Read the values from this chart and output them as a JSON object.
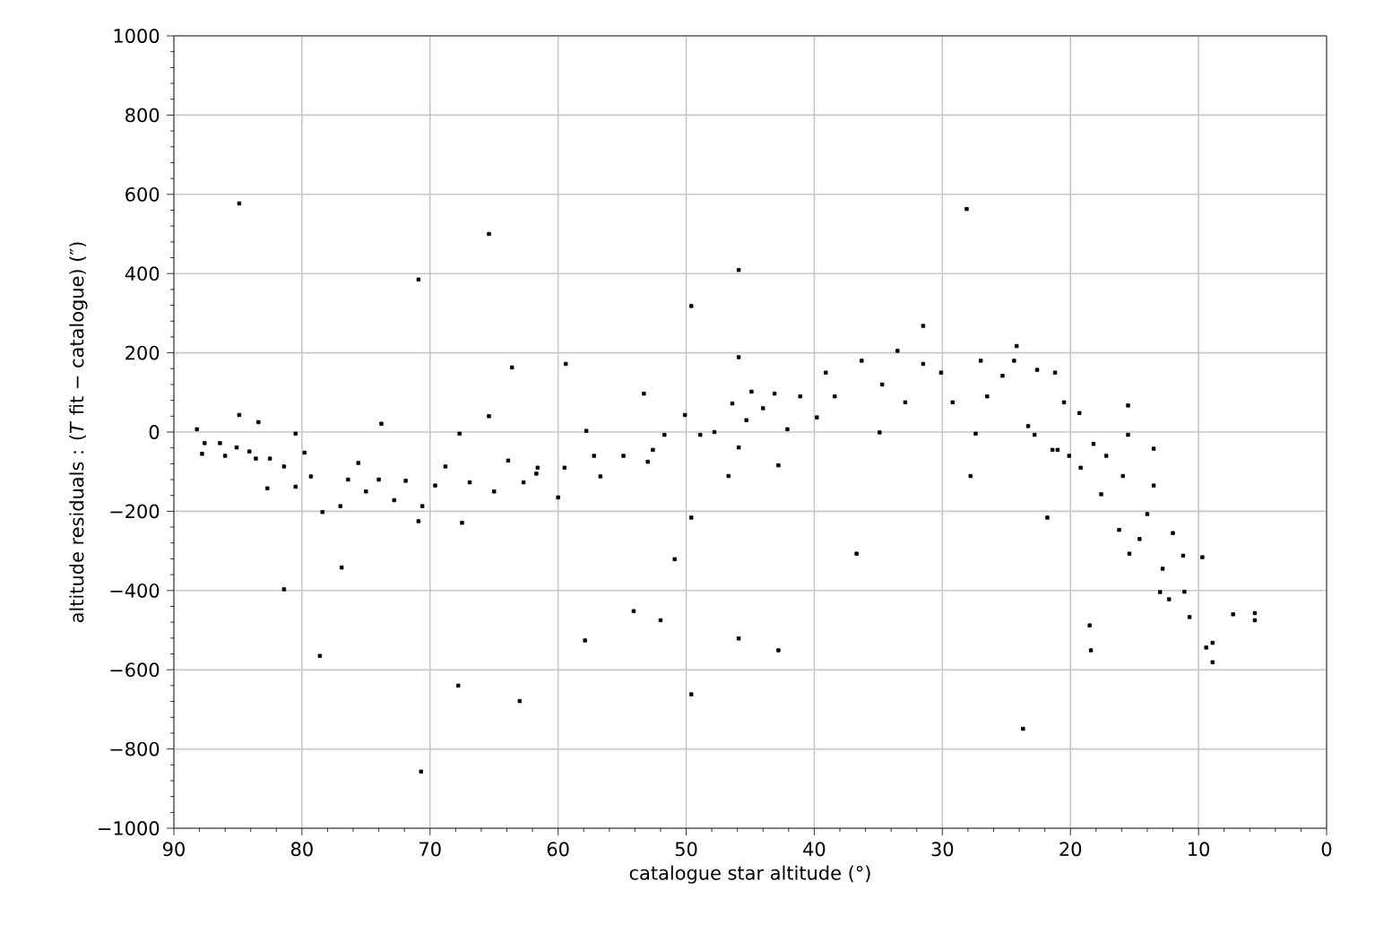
{
  "chart_data": {
    "type": "scatter",
    "xlabel": "catalogue star altitude (°)",
    "ylabel": "altitude residuals : (*T* fit − catalogue) (″)",
    "xlim": [
      90,
      0
    ],
    "ylim": [
      -1000,
      1000
    ],
    "xticks": [
      90,
      80,
      70,
      60,
      50,
      40,
      30,
      20,
      10,
      0
    ],
    "yticks": [
      {
        "value": -1000,
        "label": "−1000"
      },
      {
        "value": -800,
        "label": "−800"
      },
      {
        "value": -600,
        "label": "−600"
      },
      {
        "value": -400,
        "label": "−400"
      },
      {
        "value": -200,
        "label": "−200"
      },
      0,
      200,
      400,
      600,
      800,
      1000
    ],
    "grid": true,
    "marker": "square",
    "series": [
      {
        "color": "#000000",
        "x": [
          88.2,
          87.8,
          87.6,
          86.4,
          86.0,
          85.1,
          84.9,
          84.9,
          84.1,
          83.4,
          83.6,
          82.7,
          82.5,
          81.4,
          81.4,
          80.5,
          80.5,
          79.8,
          79.3,
          78.4,
          78.6,
          77.0,
          76.9,
          76.4,
          75.6,
          75.0,
          73.8,
          74.0,
          72.8,
          71.9,
          70.9,
          70.9,
          70.7,
          70.6,
          69.6,
          68.8,
          67.8,
          67.7,
          67.5,
          66.9,
          65.4,
          65.4,
          65.0,
          63.9,
          63.6,
          63.0,
          62.7,
          61.6,
          61.7,
          60.0,
          59.4,
          59.5,
          57.8,
          57.9,
          57.2,
          56.7,
          54.9,
          53.3,
          54.1,
          52.0,
          52.6,
          53.0,
          51.7,
          50.9,
          50.1,
          49.6,
          49.6,
          49.6,
          48.9,
          47.8,
          46.7,
          46.4,
          45.9,
          45.9,
          45.9,
          45.9,
          45.3,
          44.9,
          44.0,
          43.1,
          42.8,
          42.8,
          42.1,
          41.1,
          39.8,
          39.1,
          38.4,
          36.7,
          36.3,
          34.9,
          34.7,
          33.5,
          32.9,
          31.5,
          31.5,
          30.1,
          29.2,
          28.1,
          27.8,
          27.4,
          27.0,
          26.5,
          25.3,
          24.2,
          24.4,
          23.7,
          23.3,
          22.6,
          21.8,
          21.2,
          21.4,
          20.5,
          20.1,
          19.3,
          19.2,
          18.5,
          18.4,
          18.2,
          17.6,
          17.2,
          16.2,
          15.9,
          15.5,
          15.5,
          15.4,
          14.6,
          14.0,
          13.5,
          13.5,
          13.0,
          12.8,
          12.3,
          12.0,
          11.2,
          11.1,
          10.7,
          9.7,
          9.4,
          8.9,
          8.9,
          7.3,
          5.6,
          5.6,
          22.8,
          21.0
        ],
        "values": [
          7,
          -55,
          -28,
          -28,
          -60,
          -39,
          577,
          43,
          -49,
          25,
          -67,
          -142,
          -67,
          -397,
          -87,
          -4,
          -138,
          -52,
          -112,
          -202,
          -565,
          -187,
          -342,
          -120,
          -78,
          -150,
          21,
          -120,
          -172,
          -123,
          385,
          -225,
          -857,
          -187,
          -135,
          -87,
          -640,
          -4,
          -229,
          -127,
          500,
          40,
          -150,
          -72,
          163,
          -679,
          -127,
          -90,
          -105,
          -165,
          172,
          -90,
          3,
          -526,
          -60,
          -112,
          -60,
          97,
          -452,
          -475,
          -45,
          -75,
          -7,
          -321,
          43,
          318,
          -216,
          -662,
          -7,
          0,
          -111,
          72,
          409,
          189,
          -39,
          -521,
          30,
          102,
          60,
          97,
          -84,
          -551,
          7,
          90,
          37,
          150,
          90,
          -307,
          180,
          -1,
          120,
          205,
          75,
          268,
          172,
          150,
          75,
          563,
          -111,
          -4,
          180,
          90,
          142,
          217,
          180,
          -749,
          15,
          157,
          -216,
          150,
          -45,
          75,
          -60,
          48,
          -90,
          -488,
          -551,
          -30,
          -157,
          -60,
          -247,
          -111,
          67,
          -7,
          -307,
          -270,
          -207,
          -42,
          -135,
          -404,
          -345,
          -422,
          -255,
          -312,
          -403,
          -467,
          -316,
          -544,
          -581,
          -532,
          -460,
          -457,
          -475,
          -7,
          -45
        ]
      }
    ]
  }
}
